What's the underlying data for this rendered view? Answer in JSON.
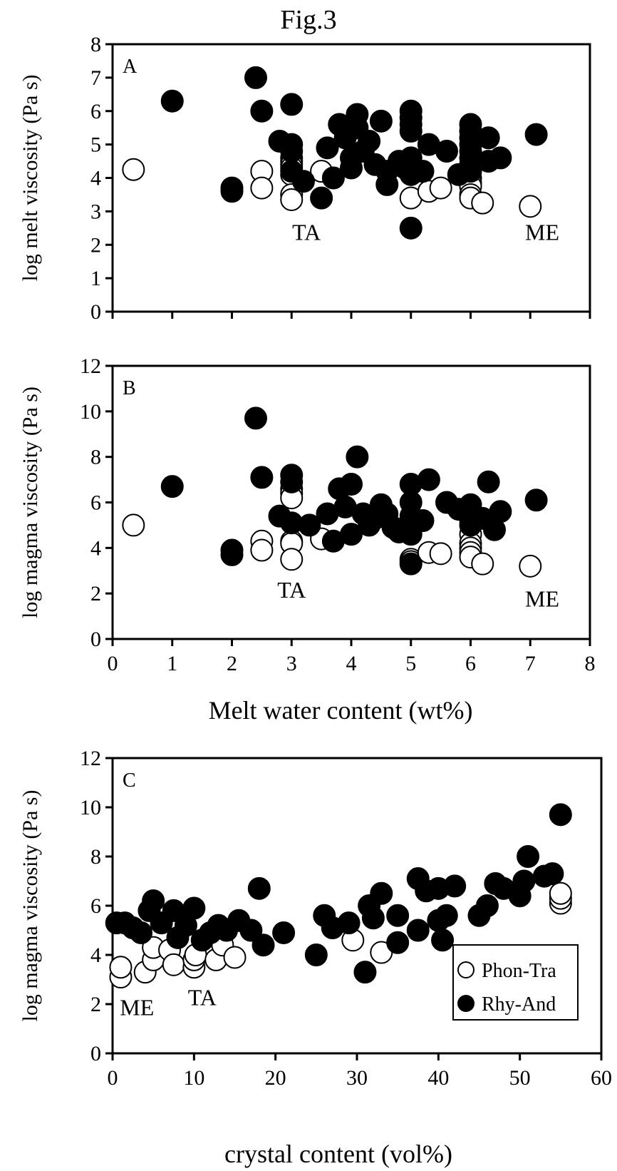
{
  "figure_title": "Fig.3",
  "legend": {
    "open_label": "Phon-Tra",
    "filled_label": "Rhy-And"
  },
  "colors": {
    "open_fill": "#ffffff",
    "filled_fill": "#000000",
    "stroke": "#000000"
  },
  "chart_data": [
    {
      "panel": "A",
      "type": "scatter",
      "ylabel": "log melt viscosity (Pa s)",
      "xlabel": "",
      "xlim": [
        0,
        8
      ],
      "ylim": [
        0,
        8
      ],
      "xticks": [
        0,
        1,
        2,
        3,
        4,
        5,
        6,
        7,
        8
      ],
      "yticks": [
        0,
        1,
        2,
        3,
        4,
        5,
        6,
        7,
        8
      ],
      "x_tick_labels_shown": false,
      "annotations": [
        {
          "text": "TA",
          "x": 3.25,
          "y": 2.4
        },
        {
          "text": "ME",
          "x": 7.2,
          "y": 2.4
        }
      ],
      "series": [
        {
          "name": "Phon-Tra",
          "marker": "open",
          "points": [
            [
              0.35,
              4.25
            ],
            [
              2.5,
              4.2
            ],
            [
              2.5,
              3.7
            ],
            [
              3.0,
              4.6
            ],
            [
              3.0,
              4.5
            ],
            [
              3.0,
              4.4
            ],
            [
              3.0,
              4.3
            ],
            [
              3.0,
              4.1
            ],
            [
              3.0,
              3.5
            ],
            [
              3.0,
              3.35
            ],
            [
              3.5,
              4.2
            ],
            [
              5.0,
              3.4
            ],
            [
              5.3,
              3.6
            ],
            [
              5.5,
              3.7
            ],
            [
              6.0,
              4.0
            ],
            [
              6.0,
              3.85
            ],
            [
              6.0,
              3.75
            ],
            [
              6.0,
              3.5
            ],
            [
              6.0,
              3.4
            ],
            [
              6.2,
              3.25
            ],
            [
              7.0,
              3.15
            ]
          ]
        },
        {
          "name": "Rhy-And",
          "marker": "filled",
          "points": [
            [
              1.0,
              6.3
            ],
            [
              2.0,
              3.7
            ],
            [
              2.0,
              3.6
            ],
            [
              2.4,
              7.0
            ],
            [
              2.5,
              6.0
            ],
            [
              2.8,
              5.1
            ],
            [
              3.0,
              6.2
            ],
            [
              3.0,
              5.0
            ],
            [
              3.0,
              4.8
            ],
            [
              3.0,
              4.2
            ],
            [
              3.2,
              3.9
            ],
            [
              3.5,
              3.4
            ],
            [
              3.6,
              4.9
            ],
            [
              3.7,
              4.0
            ],
            [
              3.8,
              5.6
            ],
            [
              3.9,
              5.2
            ],
            [
              4.0,
              4.6
            ],
            [
              4.0,
              4.3
            ],
            [
              4.1,
              5.9
            ],
            [
              4.1,
              5.5
            ],
            [
              4.2,
              4.8
            ],
            [
              4.3,
              5.1
            ],
            [
              4.4,
              4.4
            ],
            [
              4.5,
              5.7
            ],
            [
              4.6,
              4.2
            ],
            [
              4.6,
              3.8
            ],
            [
              4.8,
              4.5
            ],
            [
              4.9,
              4.3
            ],
            [
              5.0,
              6.0
            ],
            [
              5.0,
              5.8
            ],
            [
              5.0,
              5.6
            ],
            [
              5.0,
              5.4
            ],
            [
              5.0,
              4.6
            ],
            [
              5.0,
              4.1
            ],
            [
              5.0,
              2.5
            ],
            [
              5.2,
              4.2
            ],
            [
              5.3,
              5.0
            ],
            [
              5.6,
              4.8
            ],
            [
              5.8,
              4.1
            ],
            [
              6.0,
              5.6
            ],
            [
              6.0,
              5.4
            ],
            [
              6.0,
              5.2
            ],
            [
              6.0,
              5.0
            ],
            [
              6.0,
              4.8
            ],
            [
              6.0,
              4.6
            ],
            [
              6.0,
              4.4
            ],
            [
              6.0,
              4.2
            ],
            [
              6.3,
              5.2
            ],
            [
              6.3,
              4.5
            ],
            [
              6.5,
              4.6
            ],
            [
              7.1,
              5.3
            ]
          ]
        }
      ]
    },
    {
      "panel": "B",
      "type": "scatter",
      "ylabel": "log magma viscosity (Pa s)",
      "xlabel": "Melt water content (wt%)",
      "xlim": [
        0,
        8
      ],
      "ylim": [
        0,
        12
      ],
      "xticks": [
        0,
        1,
        2,
        3,
        4,
        5,
        6,
        7,
        8
      ],
      "yticks": [
        0,
        2,
        4,
        6,
        8,
        10,
        12
      ],
      "x_tick_labels_shown": true,
      "annotations": [
        {
          "text": "TA",
          "x": 3.0,
          "y": 2.2
        },
        {
          "text": "ME",
          "x": 7.2,
          "y": 1.8
        }
      ],
      "series": [
        {
          "name": "Phon-Tra",
          "marker": "open",
          "points": [
            [
              0.35,
              5.0
            ],
            [
              2.5,
              4.3
            ],
            [
              2.5,
              3.9
            ],
            [
              3.0,
              6.6
            ],
            [
              3.0,
              6.4
            ],
            [
              3.0,
              6.2
            ],
            [
              3.0,
              4.3
            ],
            [
              3.0,
              4.2
            ],
            [
              3.0,
              3.5
            ],
            [
              3.5,
              4.4
            ],
            [
              5.0,
              3.5
            ],
            [
              5.0,
              3.4
            ],
            [
              5.3,
              3.8
            ],
            [
              5.5,
              3.75
            ],
            [
              6.0,
              4.6
            ],
            [
              6.0,
              4.2
            ],
            [
              6.0,
              4.0
            ],
            [
              6.0,
              3.8
            ],
            [
              6.0,
              3.6
            ],
            [
              6.2,
              3.3
            ],
            [
              7.0,
              3.2
            ]
          ]
        },
        {
          "name": "Rhy-And",
          "marker": "filled",
          "points": [
            [
              1.0,
              6.7
            ],
            [
              2.0,
              3.9
            ],
            [
              2.0,
              3.7
            ],
            [
              2.4,
              9.7
            ],
            [
              2.5,
              7.1
            ],
            [
              2.8,
              5.4
            ],
            [
              3.0,
              7.2
            ],
            [
              3.0,
              6.9
            ],
            [
              3.0,
              5.1
            ],
            [
              3.3,
              5.0
            ],
            [
              3.6,
              5.5
            ],
            [
              3.7,
              4.3
            ],
            [
              3.8,
              6.6
            ],
            [
              3.9,
              5.8
            ],
            [
              4.0,
              6.8
            ],
            [
              4.0,
              4.6
            ],
            [
              4.1,
              8.0
            ],
            [
              4.2,
              5.5
            ],
            [
              4.3,
              5.0
            ],
            [
              4.4,
              5.3
            ],
            [
              4.5,
              5.9
            ],
            [
              4.6,
              5.5
            ],
            [
              4.7,
              4.9
            ],
            [
              4.8,
              4.7
            ],
            [
              5.0,
              6.8
            ],
            [
              5.0,
              6.0
            ],
            [
              5.0,
              5.4
            ],
            [
              5.0,
              5.0
            ],
            [
              5.0,
              4.6
            ],
            [
              5.0,
              3.3
            ],
            [
              5.2,
              5.2
            ],
            [
              5.3,
              7.0
            ],
            [
              5.6,
              6.0
            ],
            [
              5.8,
              5.7
            ],
            [
              6.0,
              5.9
            ],
            [
              6.0,
              5.6
            ],
            [
              6.0,
              5.4
            ],
            [
              6.0,
              5.2
            ],
            [
              6.0,
              5.0
            ],
            [
              6.2,
              5.3
            ],
            [
              6.3,
              6.9
            ],
            [
              6.4,
              4.8
            ],
            [
              6.5,
              5.6
            ],
            [
              7.1,
              6.1
            ]
          ]
        }
      ]
    },
    {
      "panel": "C",
      "type": "scatter",
      "ylabel": "log magma viscosity (Pa s)",
      "xlabel": "crystal content (vol%)",
      "xlim": [
        0,
        60
      ],
      "ylim": [
        0,
        12
      ],
      "xticks": [
        0,
        10,
        20,
        30,
        40,
        50,
        60
      ],
      "yticks": [
        0,
        2,
        4,
        6,
        8,
        10,
        12
      ],
      "x_tick_labels_shown": true,
      "legend_position": "bottom-right",
      "annotations": [
        {
          "text": "ME",
          "x": 3.0,
          "y": 1.9
        },
        {
          "text": "TA",
          "x": 11.0,
          "y": 2.3
        }
      ],
      "series": [
        {
          "name": "Phon-Tra",
          "marker": "open",
          "points": [
            [
              1.0,
              3.1
            ],
            [
              1.0,
              3.5
            ],
            [
              4.0,
              3.3
            ],
            [
              5.0,
              3.8
            ],
            [
              5.0,
              4.3
            ],
            [
              7.0,
              4.2
            ],
            [
              7.5,
              3.6
            ],
            [
              10.0,
              3.5
            ],
            [
              10.0,
              3.8
            ],
            [
              10.2,
              4.0
            ],
            [
              12.7,
              3.8
            ],
            [
              13.5,
              4.4
            ],
            [
              15.0,
              3.9
            ],
            [
              29.5,
              4.6
            ],
            [
              33.0,
              4.1
            ],
            [
              55.0,
              6.1
            ],
            [
              55.0,
              6.3
            ],
            [
              55.0,
              6.5
            ]
          ]
        },
        {
          "name": "Rhy-And",
          "marker": "filled",
          "points": [
            [
              0.5,
              5.3
            ],
            [
              1.5,
              5.3
            ],
            [
              2.5,
              5.1
            ],
            [
              3.5,
              4.9
            ],
            [
              4.5,
              5.8
            ],
            [
              5.0,
              6.2
            ],
            [
              6.0,
              5.3
            ],
            [
              7.5,
              5.8
            ],
            [
              8.0,
              4.7
            ],
            [
              9.0,
              5.2
            ],
            [
              10.0,
              5.9
            ],
            [
              11.0,
              4.6
            ],
            [
              12.0,
              4.9
            ],
            [
              13.0,
              5.2
            ],
            [
              14.0,
              5.0
            ],
            [
              15.5,
              5.4
            ],
            [
              17.0,
              5.0
            ],
            [
              18.0,
              6.7
            ],
            [
              18.5,
              4.4
            ],
            [
              21.0,
              4.9
            ],
            [
              25.0,
              4.0
            ],
            [
              26.0,
              5.6
            ],
            [
              27.0,
              5.1
            ],
            [
              29.0,
              5.3
            ],
            [
              31.0,
              3.3
            ],
            [
              31.5,
              6.0
            ],
            [
              32.0,
              5.5
            ],
            [
              33.0,
              6.5
            ],
            [
              35.0,
              5.6
            ],
            [
              35.0,
              4.5
            ],
            [
              37.5,
              7.1
            ],
            [
              37.5,
              5.0
            ],
            [
              38.5,
              6.6
            ],
            [
              40.0,
              6.7
            ],
            [
              40.0,
              5.4
            ],
            [
              40.5,
              4.6
            ],
            [
              41.0,
              5.6
            ],
            [
              42.0,
              6.8
            ],
            [
              45.0,
              5.6
            ],
            [
              46.0,
              6.0
            ],
            [
              47.0,
              6.9
            ],
            [
              48.0,
              6.7
            ],
            [
              50.0,
              6.4
            ],
            [
              50.5,
              7.0
            ],
            [
              51.0,
              8.0
            ],
            [
              53.0,
              7.2
            ],
            [
              54.0,
              7.3
            ],
            [
              55.0,
              9.7
            ]
          ]
        }
      ]
    }
  ]
}
